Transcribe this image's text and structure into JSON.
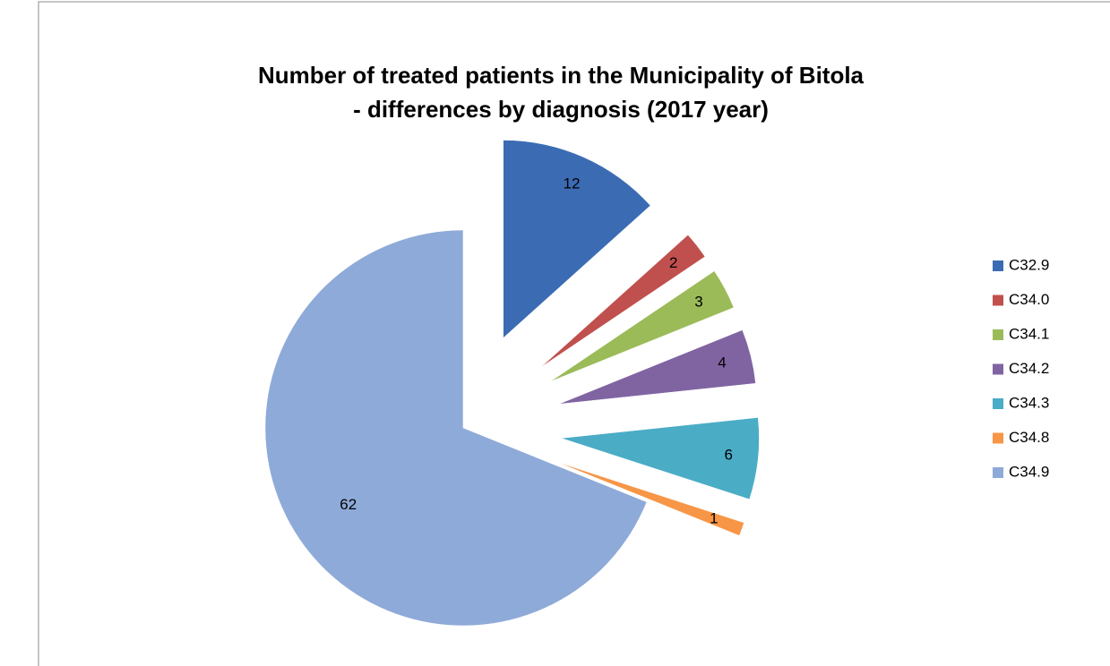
{
  "chart_data": {
    "type": "pie",
    "title": [
      "Number of treated patients in the Municipality of Bitola",
      "- differences by diagnosis (2017 year)"
    ],
    "categories": [
      "C32.9",
      "C34.0",
      "C34.1",
      "C34.2",
      "C34.3",
      "C34.8",
      "C34.9"
    ],
    "values": [
      12,
      2,
      3,
      4,
      6,
      1,
      62
    ],
    "colors": [
      "#3b6cb3",
      "#c0504d",
      "#9bbb59",
      "#8064a2",
      "#4bacc6",
      "#f79646",
      "#8eaad8"
    ],
    "legend": "right"
  }
}
